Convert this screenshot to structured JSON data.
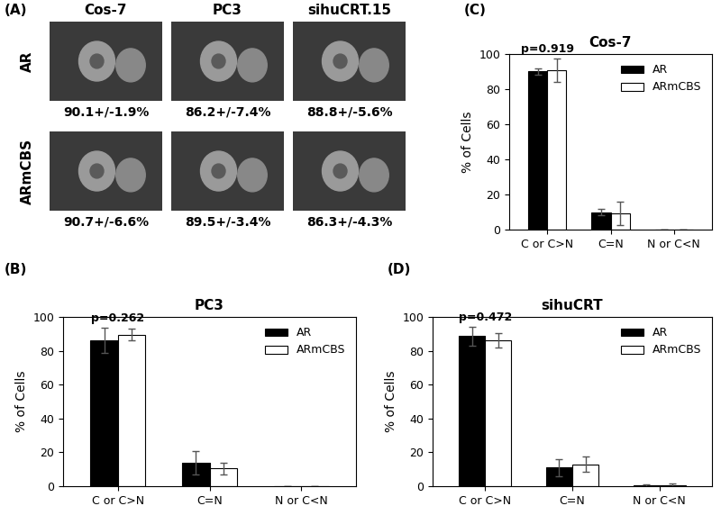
{
  "image_panel": {
    "panel": "(A)",
    "columns": [
      "Cos-7",
      "PC3",
      "sihuCRT.15"
    ],
    "rows": [
      {
        "label": "AR",
        "percentages": [
          "90.1+/-1.9%",
          "86.2+/-7.4%",
          "88.8+/-5.6%"
        ]
      },
      {
        "label": "ARmCBS",
        "percentages": [
          "90.7+/-6.6%",
          "89.5+/-3.4%",
          "86.3+/-4.3%"
        ]
      }
    ]
  },
  "chart_data": [
    {
      "type": "bar",
      "panel": "(B)",
      "title": "PC3",
      "y_label": "% of Cells",
      "categories": [
        "C or C>N",
        "C=N",
        "N or C<N"
      ],
      "series": [
        {
          "name": "AR",
          "color": "#000000",
          "values": [
            86.2,
            14,
            0
          ],
          "errors": [
            7.4,
            7,
            0
          ]
        },
        {
          "name": "ARmCBS",
          "color": "#ffffff",
          "values": [
            89.5,
            10.5,
            0
          ],
          "errors": [
            3.4,
            3.5,
            0
          ]
        }
      ],
      "annotations": [
        {
          "text": "p=0.262",
          "category": "C or C>N"
        }
      ],
      "ylim": [
        0,
        100
      ],
      "yticks": [
        0,
        20,
        40,
        60,
        80,
        100
      ],
      "legend": "upper right"
    },
    {
      "type": "bar",
      "panel": "(C)",
      "title": "Cos-7",
      "y_label": "% of Cells",
      "categories": [
        "C or C>N",
        "C=N",
        "N or C<N"
      ],
      "series": [
        {
          "name": "AR",
          "color": "#000000",
          "values": [
            90.1,
            10,
            0
          ],
          "errors": [
            1.9,
            2,
            0
          ]
        },
        {
          "name": "ARmCBS",
          "color": "#ffffff",
          "values": [
            90.7,
            9.3,
            0
          ],
          "errors": [
            6.6,
            6.6,
            0
          ]
        }
      ],
      "annotations": [
        {
          "text": "p=0.919",
          "category": "C or C>N"
        }
      ],
      "ylim": [
        0,
        100
      ],
      "yticks": [
        0,
        20,
        40,
        60,
        80,
        100
      ],
      "legend": "upper right"
    },
    {
      "type": "bar",
      "panel": "(D)",
      "title": "sihuCRT",
      "y_label": "% of Cells",
      "categories": [
        "C or C>N",
        "C=N",
        "N or C<N"
      ],
      "series": [
        {
          "name": "AR",
          "color": "#000000",
          "values": [
            88.8,
            11,
            0.3
          ],
          "errors": [
            5.6,
            5,
            0.5
          ]
        },
        {
          "name": "ARmCBS",
          "color": "#ffffff",
          "values": [
            86.3,
            13,
            0.7
          ],
          "errors": [
            4.3,
            4.5,
            1
          ]
        }
      ],
      "annotations": [
        {
          "text": "p=0.472",
          "category": "C or C>N"
        }
      ],
      "ylim": [
        0,
        100
      ],
      "yticks": [
        0,
        20,
        40,
        60,
        80,
        100
      ],
      "legend": "upper right"
    }
  ]
}
